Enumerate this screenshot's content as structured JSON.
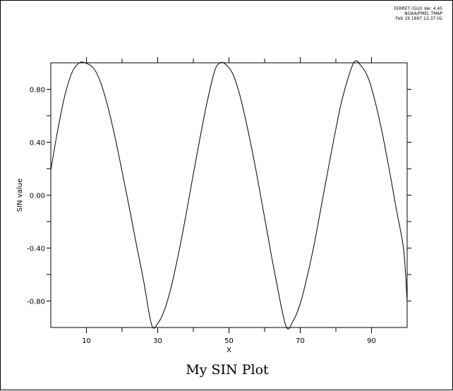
{
  "header": {
    "line1": "FERRET (GUI) Ver. 4.45",
    "line2": "NOAA/PMEL TMAP",
    "line3": "Feb 19 1997 12:37:02"
  },
  "chart_data": {
    "type": "line",
    "title": "My SIN Plot",
    "xlabel": "X",
    "ylabel": "SIN value",
    "xlim": [
      0,
      100
    ],
    "ylim": [
      -1.0,
      1.0
    ],
    "x_ticks": [
      10,
      30,
      50,
      70,
      90
    ],
    "x_tick_labels": [
      "10",
      "30",
      "50",
      "70",
      "90"
    ],
    "y_ticks": [
      0.8,
      0.4,
      0.0,
      -0.4,
      -0.8
    ],
    "y_tick_labels": [
      "0.80",
      "0.40",
      "0.00",
      "-0.40",
      "-0.80"
    ],
    "grid": false,
    "series": [
      {
        "x": [
          0,
          2,
          4,
          6,
          8,
          9.6,
          12,
          14,
          16,
          18,
          20,
          22,
          24,
          26,
          28.3,
          30,
          32,
          34,
          36,
          38,
          40,
          42,
          44,
          46,
          47.5,
          49,
          51,
          53,
          55,
          57,
          59,
          61,
          63,
          66,
          68,
          70,
          72,
          74,
          76,
          78,
          80,
          82,
          85,
          87,
          89,
          91,
          93,
          95,
          97,
          99,
          100
        ],
        "y": [
          0.19,
          0.5,
          0.76,
          0.93,
          1.0,
          1.0,
          0.96,
          0.85,
          0.67,
          0.44,
          0.18,
          -0.09,
          -0.37,
          -0.64,
          -0.98,
          -0.97,
          -0.86,
          -0.67,
          -0.42,
          -0.14,
          0.16,
          0.45,
          0.72,
          0.94,
          1.0,
          0.99,
          0.92,
          0.76,
          0.53,
          0.27,
          -0.02,
          -0.32,
          -0.61,
          -0.99,
          -0.95,
          -0.82,
          -0.61,
          -0.36,
          -0.07,
          0.22,
          0.5,
          0.75,
          1.0,
          0.98,
          0.89,
          0.71,
          0.47,
          0.19,
          -0.11,
          -0.41,
          -0.8
        ]
      }
    ]
  }
}
